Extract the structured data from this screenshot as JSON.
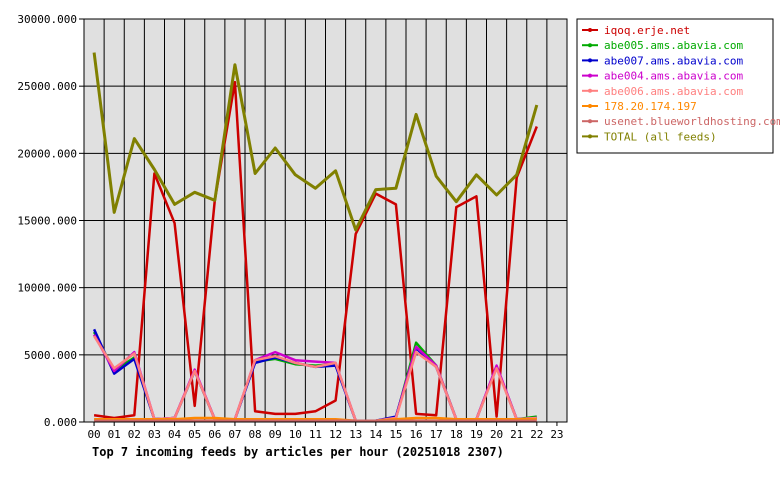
{
  "chart_data": {
    "type": "line",
    "title": "Top 7 incoming feeds by articles per hour (20251018 2307)",
    "xlabel": "",
    "ylabel": "",
    "categories": [
      "00",
      "01",
      "02",
      "03",
      "04",
      "05",
      "06",
      "07",
      "08",
      "09",
      "10",
      "11",
      "12",
      "13",
      "14",
      "15",
      "16",
      "17",
      "18",
      "19",
      "20",
      "21",
      "22",
      "23"
    ],
    "yticks": [
      "0.000",
      "5000.000",
      "10000.000",
      "15000.000",
      "20000.000",
      "25000.000",
      "30000.000"
    ],
    "ylim": [
      0,
      30000
    ],
    "grid": true,
    "legend_position": "right",
    "series": [
      {
        "name": "iqoq.erje.net",
        "color": "#cc0000",
        "values": [
          500,
          300,
          500,
          18500,
          14800,
          1200,
          16500,
          25300,
          800,
          600,
          600,
          800,
          1600,
          14000,
          17000,
          16200,
          600,
          500,
          16000,
          16800,
          400,
          18200,
          22000,
          null
        ]
      },
      {
        "name": "abe005.ams.abavia.com",
        "color": "#00aa00",
        "values": [
          6700,
          3800,
          4800,
          200,
          300,
          3800,
          200,
          200,
          4500,
          4700,
          4300,
          4200,
          4300,
          100,
          100,
          300,
          5900,
          4200,
          200,
          200,
          4100,
          200,
          400,
          null
        ]
      },
      {
        "name": "abe007.ams.abavia.com",
        "color": "#0000cc",
        "values": [
          6900,
          3600,
          4700,
          200,
          300,
          3800,
          200,
          200,
          4400,
          4800,
          4400,
          4100,
          4200,
          100,
          100,
          400,
          5500,
          4100,
          200,
          200,
          4100,
          200,
          300,
          null
        ]
      },
      {
        "name": "abe004.ams.abavia.com",
        "color": "#cc00cc",
        "values": [
          6500,
          3800,
          5200,
          200,
          300,
          3900,
          200,
          200,
          4600,
          5200,
          4600,
          4500,
          4400,
          100,
          100,
          300,
          5600,
          4200,
          200,
          200,
          4200,
          200,
          300,
          null
        ]
      },
      {
        "name": "abe006.ams.abavia.com",
        "color": "#ff8080",
        "values": [
          6400,
          4000,
          5100,
          200,
          300,
          3800,
          200,
          200,
          4600,
          4900,
          4400,
          4100,
          4400,
          100,
          100,
          300,
          5200,
          4100,
          200,
          200,
          4000,
          200,
          300,
          null
        ]
      },
      {
        "name": "178.20.174.197",
        "color": "#ff8800",
        "values": [
          200,
          200,
          200,
          200,
          200,
          300,
          300,
          200,
          200,
          200,
          200,
          200,
          200,
          100,
          100,
          200,
          300,
          300,
          200,
          200,
          200,
          200,
          200,
          null
        ]
      },
      {
        "name": "usenet.blueworldhosting.com",
        "color": "#cc6666",
        "values": [
          100,
          100,
          100,
          100,
          100,
          100,
          100,
          100,
          100,
          100,
          100,
          100,
          100,
          100,
          100,
          100,
          100,
          100,
          100,
          100,
          100,
          100,
          100,
          null
        ]
      },
      {
        "name": "TOTAL (all feeds)",
        "color": "#808000",
        "values": [
          27500,
          15600,
          21100,
          18800,
          16200,
          17100,
          16500,
          26600,
          18500,
          20400,
          18400,
          17400,
          18700,
          14300,
          17300,
          17400,
          22900,
          18300,
          16400,
          18400,
          16900,
          18400,
          23600,
          null
        ]
      }
    ]
  }
}
